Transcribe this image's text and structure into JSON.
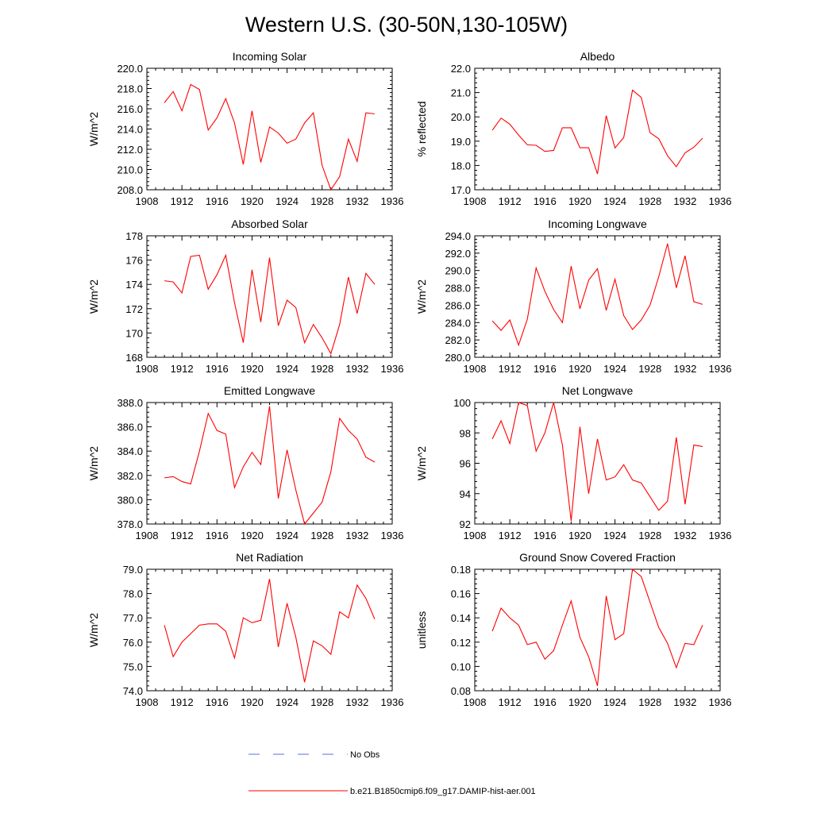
{
  "title": "Western U.S. (30-50N,130-105W)",
  "colors": {
    "series": "#ff0000",
    "obs": "#5b6fd6"
  },
  "legend": {
    "obs_label": "No Obs",
    "model_label": "b.e21.B1850cmip6.f09_g17.DAMIP-hist-aer.001"
  },
  "chart_data": [
    {
      "type": "line",
      "title": "Incoming Solar",
      "ylabel": "W/m^2",
      "xlim": [
        1908,
        1936
      ],
      "xticks": [
        1908,
        1912,
        1916,
        1920,
        1924,
        1928,
        1932,
        1936
      ],
      "ylim": [
        208,
        220
      ],
      "yticks": [
        "208.0",
        "210.0",
        "212.0",
        "214.0",
        "216.0",
        "218.0",
        "220.0"
      ],
      "x": [
        1910,
        1911,
        1912,
        1913,
        1914,
        1915,
        1916,
        1917,
        1918,
        1919,
        1920,
        1921,
        1922,
        1923,
        1924,
        1925,
        1926,
        1927,
        1928,
        1929,
        1930,
        1931,
        1932,
        1933,
        1934
      ],
      "series": [
        {
          "values": [
            216.6,
            217.7,
            215.8,
            218.4,
            217.9,
            213.9,
            215.1,
            217.0,
            214.6,
            210.5,
            215.8,
            210.7,
            214.2,
            213.6,
            212.6,
            213.0,
            214.6,
            215.6,
            210.4,
            208.0,
            209.3,
            213.0,
            210.8,
            215.6,
            215.5
          ]
        }
      ]
    },
    {
      "type": "line",
      "title": "Albedo",
      "ylabel": "% reflected",
      "xlim": [
        1908,
        1936
      ],
      "xticks": [
        1908,
        1912,
        1916,
        1920,
        1924,
        1928,
        1932,
        1936
      ],
      "ylim": [
        17,
        22
      ],
      "yticks": [
        "17.0",
        "18.0",
        "19.0",
        "20.0",
        "21.0",
        "22.0"
      ],
      "x": [
        1910,
        1911,
        1912,
        1913,
        1914,
        1915,
        1916,
        1917,
        1918,
        1919,
        1920,
        1921,
        1922,
        1923,
        1924,
        1925,
        1926,
        1927,
        1928,
        1929,
        1930,
        1931,
        1932,
        1933,
        1934
      ],
      "series": [
        {
          "values": [
            19.45,
            19.95,
            19.7,
            19.25,
            18.85,
            18.83,
            18.58,
            18.62,
            19.55,
            19.55,
            18.73,
            18.73,
            17.65,
            20.05,
            18.72,
            19.15,
            21.1,
            20.8,
            19.35,
            19.1,
            18.4,
            17.95,
            18.52,
            18.75,
            19.12
          ]
        }
      ]
    },
    {
      "type": "line",
      "title": "Absorbed Solar",
      "ylabel": "W/m^2",
      "xlim": [
        1908,
        1936
      ],
      "xticks": [
        1908,
        1912,
        1916,
        1920,
        1924,
        1928,
        1932,
        1936
      ],
      "ylim": [
        168,
        178
      ],
      "yticks": [
        "168",
        "170",
        "172",
        "174",
        "176",
        "178"
      ],
      "x": [
        1910,
        1911,
        1912,
        1913,
        1914,
        1915,
        1916,
        1917,
        1918,
        1919,
        1920,
        1921,
        1922,
        1923,
        1924,
        1925,
        1926,
        1927,
        1928,
        1929,
        1930,
        1931,
        1932,
        1933,
        1934
      ],
      "series": [
        {
          "values": [
            174.3,
            174.2,
            173.3,
            176.3,
            176.4,
            173.6,
            174.8,
            176.4,
            172.5,
            169.2,
            175.2,
            170.9,
            176.2,
            170.6,
            172.7,
            172.1,
            169.2,
            170.7,
            169.6,
            168.3,
            170.7,
            174.6,
            171.6,
            174.9,
            174.0
          ]
        }
      ]
    },
    {
      "type": "line",
      "title": "Incoming Longwave",
      "ylabel": "W/m^2",
      "xlim": [
        1908,
        1936
      ],
      "xticks": [
        1908,
        1912,
        1916,
        1920,
        1924,
        1928,
        1932,
        1936
      ],
      "ylim": [
        280,
        294
      ],
      "yticks": [
        "280.0",
        "282.0",
        "284.0",
        "286.0",
        "288.0",
        "290.0",
        "292.0",
        "294.0"
      ],
      "x": [
        1910,
        1911,
        1912,
        1913,
        1914,
        1915,
        1916,
        1917,
        1918,
        1919,
        1920,
        1921,
        1922,
        1923,
        1924,
        1925,
        1926,
        1927,
        1928,
        1929,
        1930,
        1931,
        1932,
        1933,
        1934
      ],
      "series": [
        {
          "values": [
            284.2,
            283.1,
            284.3,
            281.4,
            284.4,
            290.3,
            287.6,
            285.5,
            284.0,
            290.5,
            285.6,
            288.9,
            290.2,
            285.4,
            289.0,
            284.8,
            283.2,
            284.3,
            286.0,
            289.3,
            293.1,
            288.0,
            291.7,
            286.4,
            286.1
          ]
        }
      ]
    },
    {
      "type": "line",
      "title": "Emitted Longwave",
      "ylabel": "W/m^2",
      "xlim": [
        1908,
        1936
      ],
      "xticks": [
        1908,
        1912,
        1916,
        1920,
        1924,
        1928,
        1932,
        1936
      ],
      "ylim": [
        378,
        388
      ],
      "yticks": [
        "378.0",
        "380.0",
        "382.0",
        "384.0",
        "386.0",
        "388.0"
      ],
      "x": [
        1910,
        1911,
        1912,
        1913,
        1914,
        1915,
        1916,
        1917,
        1918,
        1919,
        1920,
        1921,
        1922,
        1923,
        1924,
        1925,
        1926,
        1927,
        1928,
        1929,
        1930,
        1931,
        1932,
        1933,
        1934
      ],
      "series": [
        {
          "values": [
            381.8,
            381.9,
            381.5,
            381.3,
            384.0,
            387.1,
            385.7,
            385.4,
            381.0,
            382.7,
            383.9,
            382.9,
            387.7,
            380.1,
            384.1,
            380.8,
            378.0,
            378.9,
            379.8,
            382.3,
            386.7,
            385.7,
            385.0,
            383.5,
            383.1
          ]
        }
      ]
    },
    {
      "type": "line",
      "title": "Net Longwave",
      "ylabel": "W/m^2",
      "xlim": [
        1908,
        1936
      ],
      "xticks": [
        1908,
        1912,
        1916,
        1920,
        1924,
        1928,
        1932,
        1936
      ],
      "ylim": [
        92,
        100
      ],
      "yticks": [
        "92",
        "94",
        "96",
        "98",
        "100"
      ],
      "x": [
        1910,
        1911,
        1912,
        1913,
        1914,
        1915,
        1916,
        1917,
        1918,
        1919,
        1920,
        1921,
        1922,
        1923,
        1924,
        1925,
        1926,
        1927,
        1928,
        1929,
        1930,
        1931,
        1932,
        1933,
        1934
      ],
      "series": [
        {
          "values": [
            97.6,
            98.8,
            97.3,
            100.0,
            99.8,
            96.8,
            98.0,
            100.0,
            97.2,
            92.2,
            98.4,
            94.0,
            97.6,
            94.9,
            95.1,
            95.9,
            94.9,
            94.7,
            93.8,
            92.9,
            93.5,
            97.7,
            93.3,
            97.2,
            97.1
          ]
        }
      ]
    },
    {
      "type": "line",
      "title": "Net Radiation",
      "ylabel": "W/m^2",
      "xlim": [
        1908,
        1936
      ],
      "xticks": [
        1908,
        1912,
        1916,
        1920,
        1924,
        1928,
        1932,
        1936
      ],
      "ylim": [
        74,
        79
      ],
      "yticks": [
        "74.0",
        "75.0",
        "76.0",
        "77.0",
        "78.0",
        "79.0"
      ],
      "x": [
        1910,
        1911,
        1912,
        1913,
        1914,
        1915,
        1916,
        1917,
        1918,
        1919,
        1920,
        1921,
        1922,
        1923,
        1924,
        1925,
        1926,
        1927,
        1928,
        1929,
        1930,
        1931,
        1932,
        1933,
        1934
      ],
      "series": [
        {
          "values": [
            76.7,
            75.4,
            76.0,
            76.35,
            76.7,
            76.75,
            76.75,
            76.45,
            75.35,
            77.0,
            76.8,
            76.9,
            78.6,
            75.8,
            77.6,
            76.2,
            74.35,
            76.05,
            75.85,
            75.5,
            77.25,
            77.0,
            78.35,
            77.8,
            76.95
          ]
        }
      ]
    },
    {
      "type": "line",
      "title": "Ground Snow Covered Fraction",
      "ylabel": "unitless",
      "xlim": [
        1908,
        1936
      ],
      "xticks": [
        1908,
        1912,
        1916,
        1920,
        1924,
        1928,
        1932,
        1936
      ],
      "ylim": [
        0.08,
        0.18
      ],
      "yticks": [
        "0.08",
        "0.10",
        "0.12",
        "0.14",
        "0.16",
        "0.18"
      ],
      "x": [
        1910,
        1911,
        1912,
        1913,
        1914,
        1915,
        1916,
        1917,
        1918,
        1919,
        1920,
        1921,
        1922,
        1923,
        1924,
        1925,
        1926,
        1927,
        1928,
        1929,
        1930,
        1931,
        1932,
        1933,
        1934
      ],
      "series": [
        {
          "values": [
            0.129,
            0.148,
            0.14,
            0.134,
            0.118,
            0.12,
            0.106,
            0.113,
            0.134,
            0.154,
            0.124,
            0.108,
            0.084,
            0.158,
            0.122,
            0.127,
            0.18,
            0.174,
            0.153,
            0.132,
            0.119,
            0.099,
            0.119,
            0.118,
            0.134
          ]
        }
      ]
    }
  ]
}
